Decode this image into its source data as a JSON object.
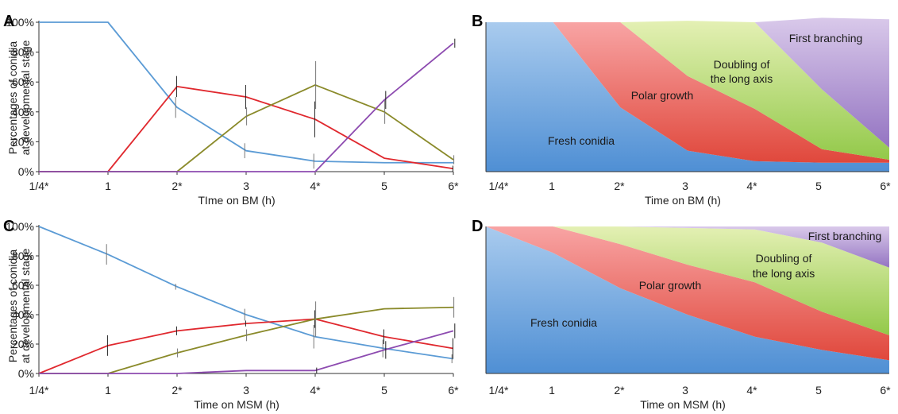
{
  "chart_data": [
    {
      "panel": "A",
      "type": "line",
      "categories": [
        "1/4*",
        "1",
        "2*",
        "3",
        "4*",
        "5",
        "6*"
      ],
      "xlabel": "TIme on BM (h)",
      "ylabel": [
        "Percentages of conidia",
        "at developmental stage"
      ],
      "yticks": [
        "0%",
        "20%",
        "40%",
        "60%",
        "80%",
        "100%"
      ],
      "ylim": [
        0,
        100
      ],
      "series": [
        {
          "color": "#5b9bd5",
          "values": [
            100,
            100,
            43,
            14,
            7,
            6,
            6
          ],
          "err": [
            0,
            0,
            7,
            5,
            5,
            0,
            0
          ]
        },
        {
          "color": "#e0282e",
          "values": [
            0,
            0,
            57,
            50,
            35,
            9,
            2
          ],
          "err": [
            0,
            0,
            7,
            8,
            12,
            0,
            2
          ]
        },
        {
          "color": "#8a8a2a",
          "values": [
            0,
            0,
            0,
            37,
            58,
            40,
            8
          ],
          "err": [
            0,
            0,
            0,
            6,
            16,
            8,
            3
          ]
        },
        {
          "color": "#8d4bb0",
          "values": [
            0,
            0,
            0,
            0,
            0,
            48,
            86
          ],
          "err": [
            0,
            0,
            0,
            0,
            0,
            6,
            3
          ]
        }
      ]
    },
    {
      "panel": "B",
      "type": "area",
      "categories": [
        "1/4*",
        "1",
        "2*",
        "3",
        "4*",
        "5",
        "6*"
      ],
      "xlabel": "Time on BM (h)",
      "labels": [
        "Fresh conidia",
        "Polar growth",
        [
          "Doubling of",
          "the long axis"
        ],
        "First branching"
      ],
      "series": [
        {
          "color_top": "#a9cbee",
          "color_bottom": "#4f8fd4",
          "values": [
            100,
            100,
            43,
            14,
            7,
            6,
            6
          ]
        },
        {
          "color_top": "#f8a4a4",
          "color_bottom": "#e0483c",
          "values": [
            0,
            0,
            57,
            50,
            35,
            9,
            2
          ]
        },
        {
          "color_top": "#e4f0b4",
          "color_bottom": "#93c94a",
          "values": [
            0,
            0,
            0,
            37,
            58,
            40,
            8
          ]
        },
        {
          "color_top": "#d9c9ea",
          "color_bottom": "#9474c2",
          "values": [
            0,
            0,
            0,
            0,
            0,
            48,
            86
          ]
        }
      ]
    },
    {
      "panel": "C",
      "type": "line",
      "categories": [
        "1/4*",
        "1",
        "2*",
        "3",
        "4*",
        "5",
        "6*"
      ],
      "xlabel": "Time on MSM (h)",
      "ylabel": [
        "Percentages of conidia",
        "at developmental stage"
      ],
      "yticks": [
        "0%",
        "20%",
        "40%",
        "60%",
        "80%",
        "100%"
      ],
      "ylim": [
        0,
        100
      ],
      "series": [
        {
          "color": "#5b9bd5",
          "values": [
            100,
            81,
            59,
            40,
            25,
            17,
            10
          ],
          "err": [
            0,
            7,
            2,
            4,
            8,
            6,
            3
          ]
        },
        {
          "color": "#e0282e",
          "values": [
            0,
            19,
            29,
            34,
            37,
            25,
            17
          ],
          "err": [
            0,
            7,
            3,
            2,
            6,
            5,
            7
          ]
        },
        {
          "color": "#8a8a2a",
          "values": [
            0,
            0,
            14,
            26,
            37,
            44,
            45
          ],
          "err": [
            0,
            0,
            3,
            4,
            12,
            0,
            7
          ]
        },
        {
          "color": "#8d4bb0",
          "values": [
            0,
            0,
            0,
            2,
            2,
            16,
            29
          ],
          "err": [
            0,
            0,
            0,
            0,
            2,
            6,
            5
          ]
        }
      ]
    },
    {
      "panel": "D",
      "type": "area",
      "categories": [
        "1/4*",
        "1",
        "2*",
        "3",
        "4*",
        "5",
        "6*"
      ],
      "xlabel": "Time on MSM (h)",
      "labels": [
        "Fresh conidia",
        "Polar growth",
        [
          "Doubling of",
          "the long axis"
        ],
        "First branching"
      ],
      "series": [
        {
          "color_top": "#a9cbee",
          "color_bottom": "#4f8fd4",
          "values": [
            100,
            82,
            58,
            40,
            25,
            16,
            9
          ]
        },
        {
          "color_top": "#f8a4a4",
          "color_bottom": "#e0483c",
          "values": [
            0,
            18,
            30,
            34,
            37,
            26,
            17
          ]
        },
        {
          "color_top": "#e4f0b4",
          "color_bottom": "#93c94a",
          "values": [
            0,
            0,
            12,
            25,
            36,
            47,
            46
          ]
        },
        {
          "color_top": "#d9c9ea",
          "color_bottom": "#9474c2",
          "values": [
            0,
            0,
            0,
            1,
            2,
            11,
            28
          ]
        }
      ]
    }
  ]
}
